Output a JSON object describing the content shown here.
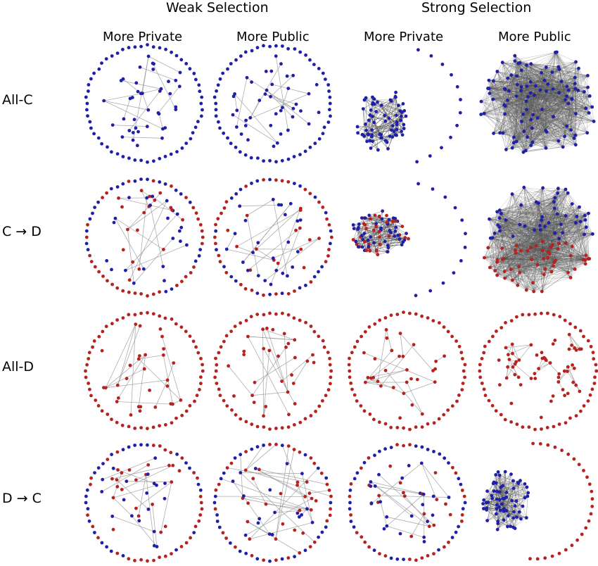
{
  "header": {
    "weak_selection": "Weak Selection",
    "strong_selection": "Strong  Selection"
  },
  "columns": [
    {
      "selection": "weak",
      "label": "More Private"
    },
    {
      "selection": "weak",
      "label": "More Public"
    },
    {
      "selection": "strong",
      "label": "More Private"
    },
    {
      "selection": "strong",
      "label": "More Public"
    }
  ],
  "rows": [
    {
      "label": "All-C"
    },
    {
      "label": "C → D"
    },
    {
      "label": "All-D"
    },
    {
      "label": "D → C"
    }
  ],
  "colors": {
    "cooperator": "#1f1fa8",
    "defector": "#b5221f",
    "edge": "#9a9a9a",
    "dense_edge": "#555555"
  },
  "panels": [
    {
      "row": "All-C",
      "column": "weak-more-private",
      "node_colors": "blue",
      "edges": "sparse"
    },
    {
      "row": "All-C",
      "column": "weak-more-public",
      "node_colors": "blue",
      "edges": "sparse"
    },
    {
      "row": "All-C",
      "column": "strong-more-private",
      "node_colors": "blue",
      "edges": "cluster"
    },
    {
      "row": "All-C",
      "column": "strong-more-public",
      "node_colors": "blue",
      "edges": "dense"
    },
    {
      "row": "C → D",
      "column": "weak-more-private",
      "node_colors": "mixed",
      "edges": "sparse"
    },
    {
      "row": "C → D",
      "column": "weak-more-public",
      "node_colors": "mixed",
      "edges": "sparse"
    },
    {
      "row": "C → D",
      "column": "strong-more-private",
      "node_colors": "mixed",
      "edges": "cluster"
    },
    {
      "row": "C → D",
      "column": "strong-more-public",
      "node_colors": "mixed",
      "edges": "dense"
    },
    {
      "row": "All-D",
      "column": "weak-more-private",
      "node_colors": "red",
      "edges": "sparse"
    },
    {
      "row": "All-D",
      "column": "weak-more-public",
      "node_colors": "red",
      "edges": "sparse"
    },
    {
      "row": "All-D",
      "column": "strong-more-private",
      "node_colors": "red",
      "edges": "sparse"
    },
    {
      "row": "All-D",
      "column": "strong-more-public",
      "node_colors": "red",
      "edges": "clusters"
    },
    {
      "row": "D → C",
      "column": "weak-more-private",
      "node_colors": "mixed",
      "edges": "sparse"
    },
    {
      "row": "D → C",
      "column": "weak-more-public",
      "node_colors": "mixed",
      "edges": "crossing"
    },
    {
      "row": "D → C",
      "column": "strong-more-private",
      "node_colors": "mixed",
      "edges": "sparse"
    },
    {
      "row": "D → C",
      "column": "strong-more-public",
      "node_colors": "mixed",
      "edges": "cluster"
    }
  ]
}
